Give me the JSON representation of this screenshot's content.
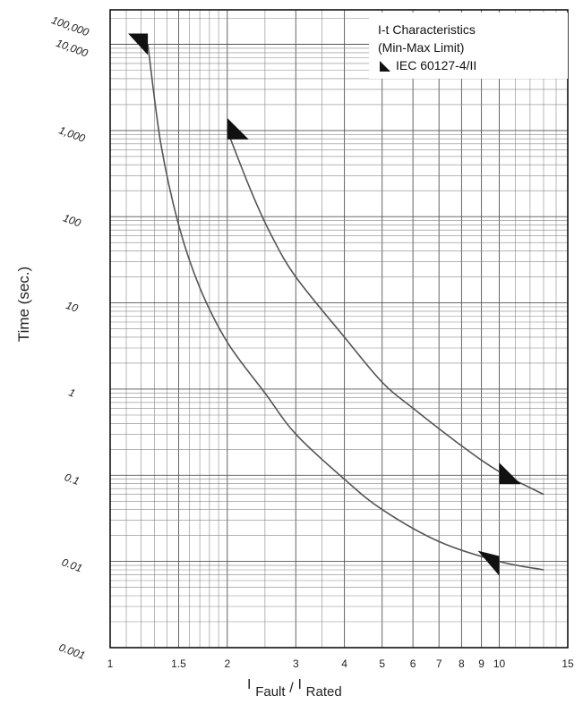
{
  "chart_data": {
    "type": "line",
    "title": "I-t Characteristics",
    "subtitle": "(Min-Max Limit)",
    "legend": {
      "marker_label": "IEC 60127-4/II",
      "placement": "top-right"
    },
    "xlabel": {
      "main_left": "I",
      "sub_left": "Fault",
      "sep": "/",
      "main_right": "I",
      "sub_right": "Rated"
    },
    "ylabel": "Time (sec.)",
    "x_scale": "log",
    "y_scale": "log",
    "xlim": [
      1,
      15
    ],
    "ylim": [
      0.001,
      10000
    ],
    "grid": true,
    "x_ticks": [
      {
        "value": 1,
        "label": "1"
      },
      {
        "value": 1.5,
        "label": "1.5"
      },
      {
        "value": 2,
        "label": "2"
      },
      {
        "value": 3,
        "label": "3"
      },
      {
        "value": 4,
        "label": "4"
      },
      {
        "value": 5,
        "label": "5"
      },
      {
        "value": 6,
        "label": "6"
      },
      {
        "value": 7,
        "label": "7"
      },
      {
        "value": 8,
        "label": "8"
      },
      {
        "value": 9,
        "label": "9"
      },
      {
        "value": 10,
        "label": "10"
      },
      {
        "value": 15,
        "label": "15"
      }
    ],
    "y_ticks": [
      {
        "value": 10000,
        "label": "10,000"
      },
      {
        "value": 1000,
        "label": "1,000"
      },
      {
        "value": 100,
        "label": "100"
      },
      {
        "value": 10,
        "label": "10"
      },
      {
        "value": 1,
        "label": "1"
      },
      {
        "value": 0.1,
        "label": "0.1"
      },
      {
        "value": 0.01,
        "label": "0.01"
      },
      {
        "value": 0.001,
        "label": "0.001"
      }
    ],
    "y_ticks_top_label": "100,000",
    "series": [
      {
        "points": [
          [
            1.25,
            10000
          ],
          [
            1.35,
            700
          ],
          [
            1.5,
            80
          ],
          [
            1.7,
            15
          ],
          [
            2.0,
            3.5
          ],
          [
            2.5,
            0.9
          ],
          [
            3.0,
            0.3
          ],
          [
            4.0,
            0.09
          ],
          [
            5.0,
            0.04
          ],
          [
            7.0,
            0.017
          ],
          [
            10.0,
            0.01
          ],
          [
            13.0,
            0.008
          ]
        ]
      },
      {
        "points": [
          [
            2.0,
            1000
          ],
          [
            2.3,
            200
          ],
          [
            2.6,
            60
          ],
          [
            3.0,
            20
          ],
          [
            4.0,
            4
          ],
          [
            5.0,
            1.2
          ],
          [
            6.0,
            0.6
          ],
          [
            8.0,
            0.22
          ],
          [
            10.0,
            0.11
          ],
          [
            13.0,
            0.06
          ]
        ]
      }
    ],
    "markers": [
      {
        "x": 1.25,
        "y": 10000
      },
      {
        "x": 2.0,
        "y": 1000
      },
      {
        "x": 10.0,
        "y": 0.1
      },
      {
        "x": 10.0,
        "y": 0.01
      }
    ]
  }
}
